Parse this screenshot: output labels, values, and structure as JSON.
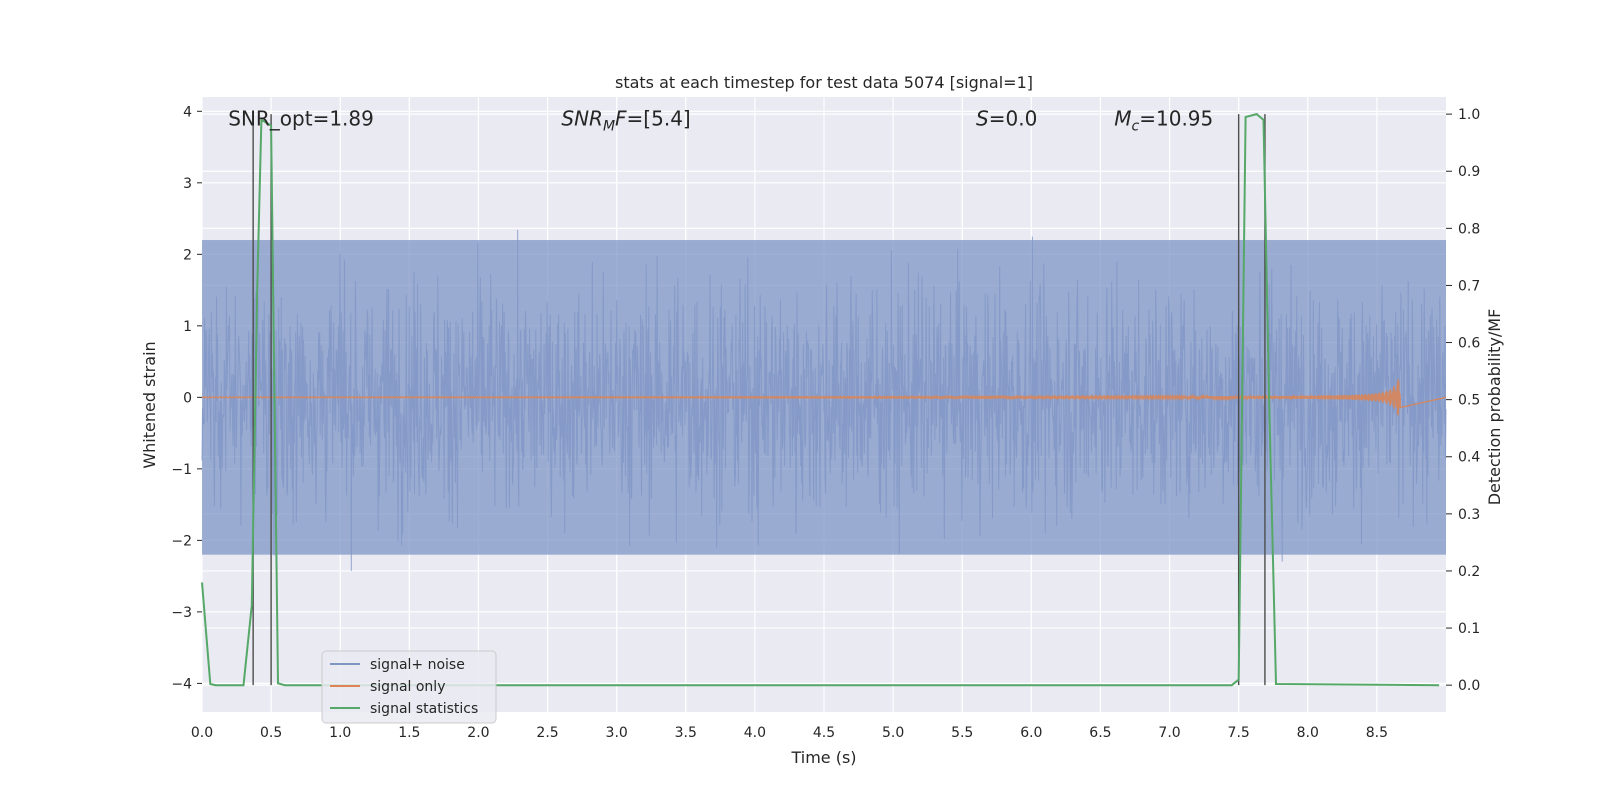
{
  "chart_data": {
    "type": "line",
    "title": "stats at each timestep for test data 5074 [signal=1]",
    "xlabel": "Time (s)",
    "ylabel": "Whitened strain",
    "y2label": "Detection probability/MF",
    "xlim": [
      0.0,
      9.0
    ],
    "ylim": [
      -4.4,
      4.2
    ],
    "y2lim": [
      -0.047,
      1.03
    ],
    "xticks": [
      0.0,
      0.5,
      1.0,
      1.5,
      2.0,
      2.5,
      3.0,
      3.5,
      4.0,
      4.5,
      5.0,
      5.5,
      6.0,
      6.5,
      7.0,
      7.5,
      8.0,
      8.5
    ],
    "xtick_labels": [
      "0.0",
      "0.5",
      "1.0",
      "1.5",
      "2.0",
      "2.5",
      "3.0",
      "3.5",
      "4.0",
      "4.5",
      "5.0",
      "5.5",
      "6.0",
      "6.5",
      "7.0",
      "7.5",
      "8.0",
      "8.5"
    ],
    "yticks": [
      -4,
      -3,
      -2,
      -1,
      0,
      1,
      2,
      3,
      4
    ],
    "ytick_labels": [
      "−4",
      "−3",
      "−2",
      "−1",
      "0",
      "1",
      "2",
      "3",
      "4"
    ],
    "y2ticks": [
      0.0,
      0.1,
      0.2,
      0.3,
      0.4,
      0.5,
      0.6,
      0.7,
      0.8,
      0.9,
      1.0
    ],
    "y2tick_labels": [
      "0.0",
      "0.1",
      "0.2",
      "0.3",
      "0.4",
      "0.5",
      "0.6",
      "0.7",
      "0.8",
      "0.9",
      "1.0"
    ],
    "grid": true,
    "legend_position": "lower-left",
    "annotations": [
      {
        "text": "SNR_opt=1.89",
        "x": 0.19,
        "y": 3.9
      },
      {
        "text": "SNR",
        "sub": "M",
        "suffix": "F=[5.4]",
        "italic": true,
        "x": 2.6,
        "y": 3.9
      },
      {
        "text": "S",
        "suffix": "=0.0",
        "italic": true,
        "x": 5.6,
        "y": 3.9
      },
      {
        "text": "M",
        "sub": "c",
        "suffix": "=10.95",
        "italic": true,
        "x": 6.6,
        "y": 3.9
      }
    ],
    "series": [
      {
        "name": "signal+ noise",
        "color": "#7f96c5",
        "axis": "left",
        "kind": "noise",
        "amplitude_band": [
          -2.2,
          2.2
        ],
        "x_range": [
          0.0,
          9.0
        ]
      },
      {
        "name": "signal only",
        "color": "#dd8452",
        "axis": "left",
        "kind": "chirp",
        "x_range": [
          0.0,
          8.67
        ],
        "peak_time": 8.67,
        "peak_amplitude": 0.45
      },
      {
        "name": "signal statistics",
        "color": "#55a868",
        "axis": "right",
        "x": [
          0.0,
          0.06,
          0.1,
          0.3,
          0.36,
          0.4,
          0.43,
          0.5,
          0.55,
          0.6,
          7.45,
          7.5,
          7.55,
          7.63,
          7.68,
          7.72,
          7.77,
          8.95
        ],
        "values": [
          0.18,
          0.002,
          0.0,
          0.0,
          0.14,
          0.7,
          0.99,
          0.98,
          0.003,
          0.0,
          0.0,
          0.01,
          0.995,
          1.0,
          0.99,
          0.5,
          0.002,
          0.0
        ]
      }
    ],
    "vertical_markers": [
      {
        "x": 0.37,
        "y2": 1.0
      },
      {
        "x": 0.5,
        "y2": 1.0
      },
      {
        "x": 7.5,
        "y2": 1.0
      },
      {
        "x": 7.69,
        "y2": 1.0
      }
    ],
    "colors": {
      "background": "#eaeaf2",
      "grid": "#ffffff",
      "marker": "#4d4d4d"
    }
  }
}
